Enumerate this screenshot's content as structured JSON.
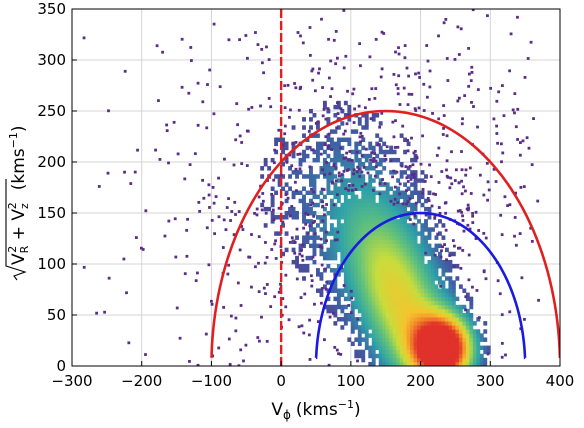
{
  "chart_data": {
    "type": "heatmap",
    "title": "",
    "xlabel": "V",
    "xlabel_sub": "ϕ",
    "xlabel_units": "(kms",
    "xlabel_units_sup": "−1",
    "xlabel_units_close": ")",
    "ylabel_pre": "V",
    "ylabel_sub1": "R",
    "ylabel_sup1": "2",
    "ylabel_plus": " + V",
    "ylabel_sub2": "z",
    "ylabel_sup2": "2",
    "ylabel_units": "(kms",
    "ylabel_units_sup": "−1",
    "ylabel_units_close": ")",
    "xlim": [
      -300,
      400
    ],
    "ylim": [
      0,
      350
    ],
    "x_ticks": [
      -300,
      -200,
      -100,
      0,
      100,
      200,
      300,
      400
    ],
    "y_ticks": [
      0,
      50,
      100,
      150,
      200,
      250,
      300,
      350
    ],
    "x_tick_labels": [
      "−300",
      "−200",
      "−100",
      "0",
      "100",
      "200",
      "300",
      "400"
    ],
    "y_tick_labels": [
      "0",
      "50",
      "100",
      "150",
      "200",
      "250",
      "300",
      "350"
    ],
    "grid": true,
    "density_peak": {
      "x": 232,
      "y": 18
    },
    "density_colormap": [
      "#5b2d86",
      "#3f5fa5",
      "#2fa3a8",
      "#63c27a",
      "#c8dd3c",
      "#f6c32c",
      "#f07a2b",
      "#e0302a"
    ],
    "lines": [
      {
        "kind": "vertical",
        "x": 0,
        "color": "#e02020",
        "style": "dashed"
      },
      {
        "kind": "semicircle",
        "center_x": 150,
        "radius": 250,
        "color": "#e02020",
        "style": "solid"
      },
      {
        "kind": "semicircle",
        "center_x": 200,
        "radius": 150,
        "color": "#1a1ae0",
        "style": "solid"
      }
    ]
  }
}
